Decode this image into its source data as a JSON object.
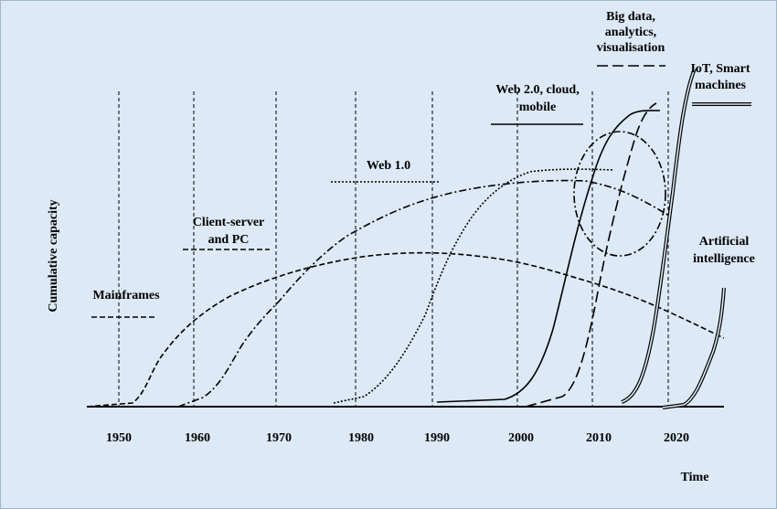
{
  "y_axis_label": "Cumulative capacity",
  "x_axis_label": "Time",
  "years": [
    "1950",
    "1960",
    "1970",
    "1980",
    "1990",
    "2000",
    "2010",
    "2020"
  ],
  "eras": [
    {
      "lines": [
        "Mainframes"
      ]
    },
    {
      "lines": [
        "Client-server",
        "and PC"
      ]
    },
    {
      "lines": [
        "Web 1.0"
      ]
    },
    {
      "lines": [
        "Web 2.0, cloud,",
        "mobile"
      ]
    },
    {
      "lines": [
        "Big data,",
        "analytics,",
        "visualisation"
      ]
    },
    {
      "lines": [
        "IoT, Smart",
        "machines"
      ]
    },
    {
      "lines": [
        "Artificial",
        "intelligence"
      ]
    }
  ]
}
